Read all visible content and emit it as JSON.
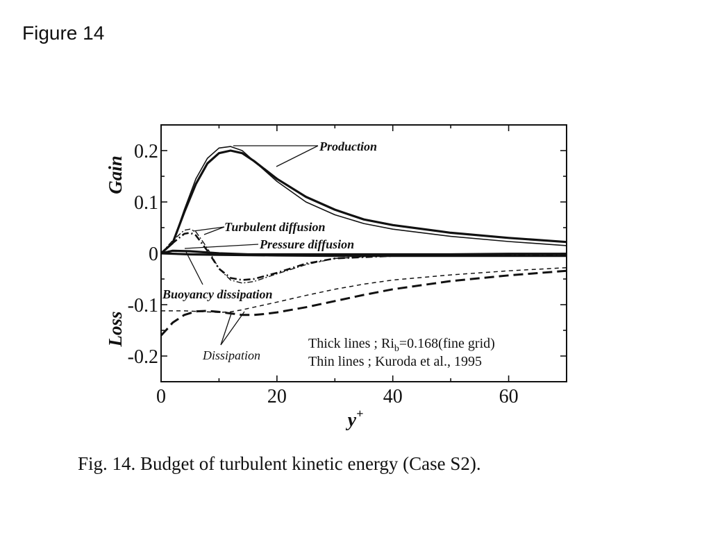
{
  "slide": {
    "title": "Figure 14"
  },
  "caption": "Fig.  14. Budget of turbulent kinetic energy (Case S2).",
  "chart_data": {
    "type": "line",
    "xlabel": "y",
    "xlabel_sup": "+",
    "ylabel_gain": "Gain",
    "ylabel_loss": "Loss",
    "xlim": [
      0,
      70
    ],
    "ylim": [
      -0.25,
      0.25
    ],
    "xticks": [
      0,
      20,
      40,
      60
    ],
    "xtick_labels": [
      "0",
      "20",
      "40",
      "60"
    ],
    "yticks": [
      0.2,
      0.1,
      0,
      -0.1,
      -0.2
    ],
    "ytick_labels": [
      "0.2",
      "0.1",
      "0",
      "-0.1",
      "-0.2"
    ],
    "grid": false,
    "legend": {
      "line1_a": "Thick lines ; Ri",
      "line1_sub": "b",
      "line1_b": "=0.168(fine grid)",
      "line2": "Thin lines ; Kuroda et al., 1995"
    },
    "annotations": {
      "production": "Production",
      "turbulent_diffusion": "Turbulent diffusion",
      "pressure_diffusion": "Pressure diffusion",
      "buoyancy_dissipation": "Buoyancy dissipation",
      "dissipation": "Dissipation"
    },
    "series": [
      {
        "id": "production_thick",
        "style": "thick-solid",
        "x": [
          0,
          2,
          4,
          6,
          8,
          10,
          12,
          14,
          16,
          20,
          25,
          30,
          35,
          40,
          50,
          60,
          70
        ],
        "y": [
          0,
          0.02,
          0.08,
          0.135,
          0.175,
          0.195,
          0.2,
          0.195,
          0.18,
          0.145,
          0.11,
          0.085,
          0.066,
          0.055,
          0.04,
          0.03,
          0.022
        ]
      },
      {
        "id": "production_thin",
        "style": "thin-solid",
        "x": [
          0,
          2,
          4,
          6,
          8,
          10,
          12,
          14,
          16,
          20,
          25,
          30,
          35,
          40,
          50,
          60,
          70
        ],
        "y": [
          0,
          0.02,
          0.085,
          0.145,
          0.185,
          0.205,
          0.208,
          0.2,
          0.18,
          0.14,
          0.1,
          0.075,
          0.058,
          0.047,
          0.033,
          0.023,
          0.015
        ]
      },
      {
        "id": "turbulent_diffusion_thick",
        "style": "thick-dashdot",
        "x": [
          0,
          2,
          4,
          5,
          6,
          8,
          10,
          12,
          14,
          16,
          20,
          25,
          30,
          40,
          50,
          60,
          70
        ],
        "y": [
          0,
          0.02,
          0.038,
          0.04,
          0.035,
          0.005,
          -0.03,
          -0.048,
          -0.052,
          -0.05,
          -0.038,
          -0.02,
          -0.01,
          -0.005,
          -0.004,
          -0.003,
          -0.002
        ]
      },
      {
        "id": "turbulent_diffusion_thin",
        "style": "thin-dashdot",
        "x": [
          0,
          2,
          4,
          5,
          6,
          8,
          10,
          12,
          14,
          16,
          20,
          25,
          30,
          40,
          50,
          60,
          70
        ],
        "y": [
          0,
          0.025,
          0.045,
          0.047,
          0.042,
          0.01,
          -0.03,
          -0.052,
          -0.058,
          -0.055,
          -0.04,
          -0.022,
          -0.01,
          -0.004,
          -0.003,
          -0.002,
          -0.001
        ]
      },
      {
        "id": "pressure_diffusion_thick",
        "style": "thick-solid",
        "x": [
          0,
          2,
          5,
          10,
          15,
          20,
          30,
          40,
          50,
          60,
          70
        ],
        "y": [
          0,
          0.005,
          0.004,
          0.0,
          -0.002,
          -0.002,
          -0.002,
          -0.002,
          -0.002,
          -0.001,
          -0.001
        ]
      },
      {
        "id": "buoyancy_dissipation_thick",
        "style": "thick-solid",
        "x": [
          0,
          5,
          10,
          20,
          30,
          40,
          50,
          60,
          70
        ],
        "y": [
          0,
          -0.002,
          -0.003,
          -0.004,
          -0.005,
          -0.005,
          -0.005,
          -0.005,
          -0.005
        ]
      },
      {
        "id": "dissipation_thick",
        "style": "thick-dashed",
        "x": [
          0,
          1,
          2,
          4,
          6,
          8,
          10,
          12,
          14,
          16,
          18,
          20,
          25,
          30,
          35,
          40,
          50,
          60,
          70
        ],
        "y": [
          -0.16,
          -0.148,
          -0.135,
          -0.12,
          -0.113,
          -0.112,
          -0.114,
          -0.117,
          -0.12,
          -0.12,
          -0.118,
          -0.115,
          -0.105,
          -0.093,
          -0.081,
          -0.07,
          -0.054,
          -0.043,
          -0.034
        ]
      },
      {
        "id": "dissipation_thin",
        "style": "thin-dashed",
        "x": [
          0,
          2,
          4,
          6,
          8,
          10,
          12,
          14,
          16,
          20,
          25,
          30,
          35,
          40,
          50,
          60,
          70
        ],
        "y": [
          -0.112,
          -0.112,
          -0.112,
          -0.113,
          -0.114,
          -0.115,
          -0.114,
          -0.11,
          -0.105,
          -0.095,
          -0.082,
          -0.07,
          -0.06,
          -0.052,
          -0.042,
          -0.034,
          -0.028
        ]
      }
    ]
  }
}
